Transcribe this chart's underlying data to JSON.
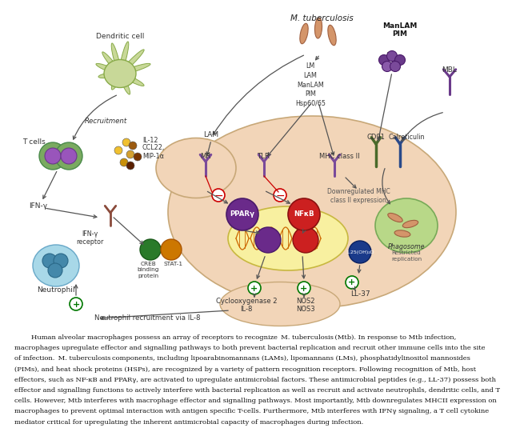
{
  "bg_color": "#ffffff",
  "macrophage_color": "#f2d5b8",
  "macrophage_edge": "#c8a878",
  "dendritic_color": "#c8d898",
  "dendritic_edge": "#88aa48",
  "tcell_outer": "#7aaa60",
  "tcell_inner": "#9955bb",
  "neutrophil_color": "#a8d8e8",
  "neutrophil_edge": "#68a8c8",
  "neutrophil_nucleus": "#4488aa",
  "phagosome_color": "#b8d888",
  "phagosome_edge": "#78aa58",
  "nucleus_color": "#f8f0a0",
  "nucleus_edge": "#c8b840",
  "tb_color": "#d4956a",
  "dna_color": "#cc6600",
  "pparg_color": "#6a2a8a",
  "nfkb_color": "#cc2020",
  "creb_color": "#2a7a2a",
  "stat1_color": "#cc7700",
  "vitd_color": "#1a3a8a",
  "receptor_mr_tlr": "#7a4a9a",
  "receptor_mhc": "#7a4a9a",
  "cd91_color": "#4a6a2a",
  "calret_color": "#2a4a8a",
  "mbl_color": "#6a3a8a",
  "arrow_color": "#555555",
  "inhibit_color": "#cc0000",
  "plus_color": "#007700",
  "text_color": "#333333",
  "dark_text": "#111111",
  "berry_colors": [
    "#6a3a8a",
    "#7a4a9a",
    "#6a3a8a",
    "#8a5aaa",
    "#7a4a9a"
  ],
  "cytokine_colors": [
    "#f0c030",
    "#f0c030",
    "#d4a030",
    "#c8900a",
    "#9b5a10",
    "#7a3500",
    "#5a2000"
  ],
  "paragraph_line1": "        Human alveolar macrophages possess an array of receptors to recognize ",
  "paragraph_italic1": "M. tuberculosis",
  "paragraph_line1b": " (Mtb). In response to Mtb infection,",
  "paragraph_line2": "macrophages upregulate effector and signalling pathways to both prevent bacterial replication and recruit other immune cells into the site",
  "paragraph_line3": "of infection. ",
  "paragraph_italic2": "M. tuberculosis",
  "paragraph_line3b": " components, including lipoarabinomannans (LAMs), lipomannans (LMs), phosphatidylinositol mannosides",
  "paragraph_line4": "(PIMs), and heat shock proteins (HSPs), are recognized by a variety of pattern recognition receptors. Following recognition of Mtb, host",
  "paragraph_line5": "effectors, such as NF-κB and PPARγ, are activated to upregulate antimicrobial factors. These antimicrobial peptides (e.g., LL-37) possess both",
  "paragraph_line6": "effector and signalling functions to actively interfere with bacterial replication as well as recruit and activate neutrophils, dendritic cells, and T",
  "paragraph_line7": "cells. However, Mtb interferes with macrophage effector and signalling pathways. Most importantly, Mtb downregulates MHCII expression on",
  "paragraph_line8": "macrophages to prevent optimal interaction with antigen specific T-cells. Furthermore, Mtb interferes with IFNγ signaling, a T cell cytokine",
  "paragraph_line9": "mediator critical for upregulating the inherent antimicrobial capacity of macrophages during infection."
}
